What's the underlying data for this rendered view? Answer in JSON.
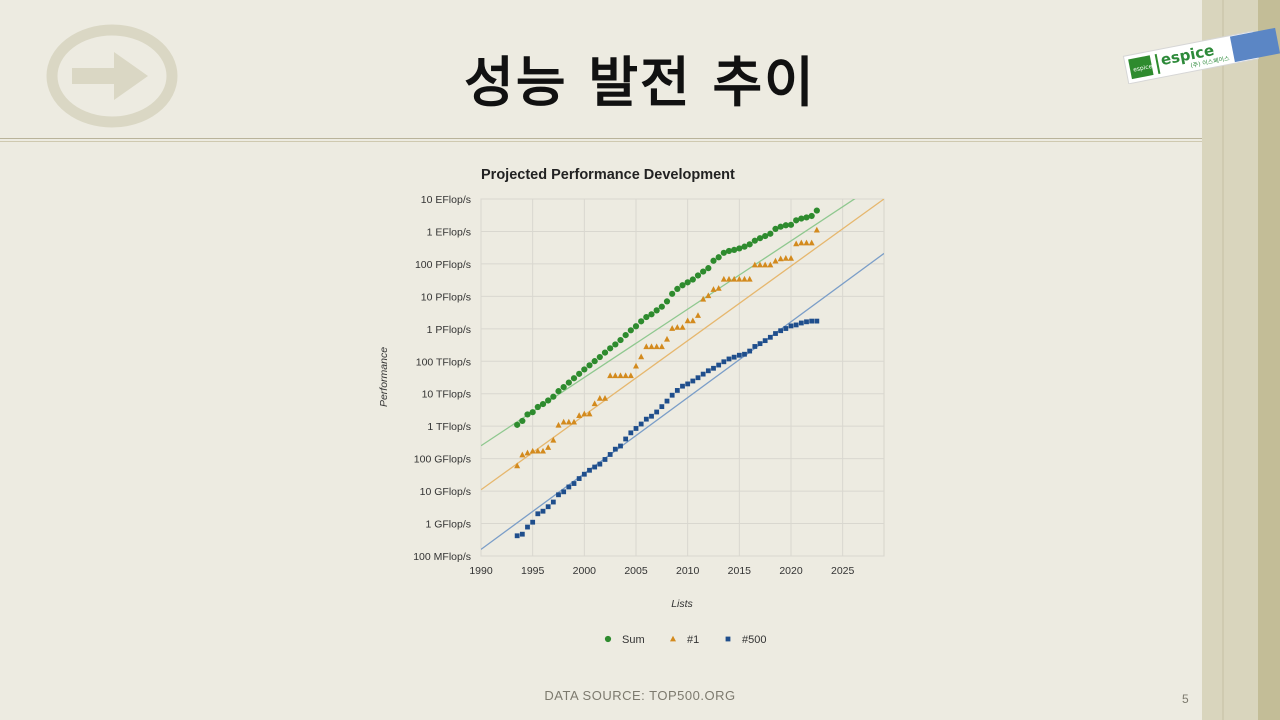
{
  "slide": {
    "title": "성능 발전 추이",
    "footer": "DATA SOURCE: TOP500.ORG",
    "page_number": "5",
    "brand": {
      "name": "espice",
      "subtitle": "(주) 이스페이스",
      "badge": "espice"
    }
  },
  "colors": {
    "sum": "#2e8b2e",
    "first": "#d38a1d",
    "last": "#1f4e8c",
    "background": "#edebe1",
    "accent_band": "#d9d5bd"
  },
  "chart_data": {
    "type": "scatter",
    "title": "Projected Performance Development",
    "xlabel": "Lists",
    "ylabel": "Performance",
    "y_scale": "log",
    "xlim": [
      1990,
      2029
    ],
    "ylim_gflops": [
      0.1,
      10000000000
    ],
    "x_ticks": [
      1990,
      1995,
      2000,
      2005,
      2010,
      2015,
      2020,
      2025
    ],
    "y_ticks": [
      {
        "value": 0.1,
        "label": "100 MFlop/s"
      },
      {
        "value": 1,
        "label": "1 GFlop/s"
      },
      {
        "value": 10,
        "label": "10 GFlop/s"
      },
      {
        "value": 100,
        "label": "100 GFlop/s"
      },
      {
        "value": 1000,
        "label": "1 TFlop/s"
      },
      {
        "value": 10000,
        "label": "10 TFlop/s"
      },
      {
        "value": 100000,
        "label": "100 TFlop/s"
      },
      {
        "value": 1000000,
        "label": "1 PFlop/s"
      },
      {
        "value": 10000000,
        "label": "10 PFlop/s"
      },
      {
        "value": 100000000,
        "label": "100 PFlop/s"
      },
      {
        "value": 1000000000,
        "label": "1 EFlop/s"
      },
      {
        "value": 10000000000,
        "label": "10 EFlop/s"
      }
    ],
    "grid": true,
    "legend_position": "bottom",
    "series": [
      {
        "name": "Sum",
        "marker": "circle",
        "color": "#2e8b2e",
        "points": [
          [
            1993.5,
            1100
          ],
          [
            1994.0,
            1450
          ],
          [
            1994.5,
            2300
          ],
          [
            1995.0,
            2700
          ],
          [
            1995.5,
            3900
          ],
          [
            1996.0,
            4800
          ],
          [
            1996.5,
            6200
          ],
          [
            1997.0,
            8100
          ],
          [
            1997.5,
            12000
          ],
          [
            1998.0,
            16000
          ],
          [
            1998.5,
            22000
          ],
          [
            1999.0,
            30000
          ],
          [
            1999.5,
            41000
          ],
          [
            2000.0,
            56000
          ],
          [
            2000.5,
            75000
          ],
          [
            2001.0,
            101000
          ],
          [
            2001.5,
            135000
          ],
          [
            2002.0,
            185000
          ],
          [
            2002.5,
            250000
          ],
          [
            2003.0,
            330000
          ],
          [
            2003.5,
            450000
          ],
          [
            2004.0,
            640000
          ],
          [
            2004.5,
            900000
          ],
          [
            2005.0,
            1200000
          ],
          [
            2005.5,
            1700000
          ],
          [
            2006.0,
            2300000
          ],
          [
            2006.5,
            2800000
          ],
          [
            2007.0,
            3700000
          ],
          [
            2007.5,
            4800000
          ],
          [
            2008.0,
            7000000
          ],
          [
            2008.5,
            12000000
          ],
          [
            2009.0,
            17000000
          ],
          [
            2009.5,
            22000000
          ],
          [
            2010.0,
            27000000
          ],
          [
            2010.5,
            33000000
          ],
          [
            2011.0,
            44000000
          ],
          [
            2011.5,
            58000000
          ],
          [
            2012.0,
            74000000
          ],
          [
            2012.5,
            125000000
          ],
          [
            2013.0,
            160000000
          ],
          [
            2013.5,
            220000000
          ],
          [
            2014.0,
            250000000
          ],
          [
            2014.5,
            270000000
          ],
          [
            2015.0,
            300000000
          ],
          [
            2015.5,
            340000000
          ],
          [
            2016.0,
            400000000
          ],
          [
            2016.5,
            520000000
          ],
          [
            2017.0,
            620000000
          ],
          [
            2017.5,
            720000000
          ],
          [
            2018.0,
            850000000
          ],
          [
            2018.5,
            1200000000
          ],
          [
            2019.0,
            1400000000
          ],
          [
            2019.5,
            1550000000
          ],
          [
            2020.0,
            1600000000
          ],
          [
            2020.5,
            2200000000
          ],
          [
            2021.0,
            2500000000
          ],
          [
            2021.5,
            2700000000
          ],
          [
            2022.0,
            3000000000
          ],
          [
            2022.5,
            4400000000
          ]
        ]
      },
      {
        "name": "#1",
        "marker": "triangle",
        "color": "#d38a1d",
        "points": [
          [
            1993.5,
            60
          ],
          [
            1994.0,
            130
          ],
          [
            1994.5,
            150
          ],
          [
            1995.0,
            170
          ],
          [
            1995.5,
            170
          ],
          [
            1996.0,
            170
          ],
          [
            1996.5,
            220
          ],
          [
            1997.0,
            370
          ],
          [
            1997.5,
            1070
          ],
          [
            1998.0,
            1340
          ],
          [
            1998.5,
            1340
          ],
          [
            1999.0,
            1340
          ],
          [
            1999.5,
            2120
          ],
          [
            2000.0,
            2380
          ],
          [
            2000.5,
            2380
          ],
          [
            2001.0,
            4940
          ],
          [
            2001.5,
            7230
          ],
          [
            2002.0,
            7230
          ],
          [
            2002.5,
            35860
          ],
          [
            2003.0,
            35860
          ],
          [
            2003.5,
            35860
          ],
          [
            2004.0,
            35860
          ],
          [
            2004.5,
            35860
          ],
          [
            2005.0,
            70720
          ],
          [
            2005.5,
            136800
          ],
          [
            2006.0,
            280600
          ],
          [
            2006.5,
            280600
          ],
          [
            2007.0,
            280600
          ],
          [
            2007.5,
            280600
          ],
          [
            2008.0,
            478200
          ],
          [
            2008.5,
            1026000
          ],
          [
            2009.0,
            1105000
          ],
          [
            2009.5,
            1105000
          ],
          [
            2010.0,
            1759000
          ],
          [
            2010.5,
            1759000
          ],
          [
            2011.0,
            2566000
          ],
          [
            2011.5,
            8162000
          ],
          [
            2012.0,
            10510000
          ],
          [
            2012.5,
            16320000
          ],
          [
            2013.0,
            17590000
          ],
          [
            2013.5,
            33860000
          ],
          [
            2014.0,
            33860000
          ],
          [
            2014.5,
            33860000
          ],
          [
            2015.0,
            33860000
          ],
          [
            2015.5,
            33860000
          ],
          [
            2016.0,
            33860000
          ],
          [
            2016.5,
            93010000
          ],
          [
            2017.0,
            93010000
          ],
          [
            2017.5,
            93010000
          ],
          [
            2018.0,
            93010000
          ],
          [
            2018.5,
            122300000
          ],
          [
            2019.0,
            143500000
          ],
          [
            2019.5,
            148600000
          ],
          [
            2020.0,
            148600000
          ],
          [
            2020.5,
            415500000
          ],
          [
            2021.0,
            442000000
          ],
          [
            2021.5,
            442000000
          ],
          [
            2022.0,
            442000000
          ],
          [
            2022.5,
            1102000000
          ]
        ]
      },
      {
        "name": "#500",
        "marker": "square",
        "color": "#1f4e8c",
        "points": [
          [
            1993.5,
            0.42
          ],
          [
            1994.0,
            0.47
          ],
          [
            1994.5,
            0.78
          ],
          [
            1995.0,
            1.1
          ],
          [
            1995.5,
            2.0
          ],
          [
            1996.0,
            2.4
          ],
          [
            1996.5,
            3.3
          ],
          [
            1997.0,
            4.6
          ],
          [
            1997.5,
            7.7
          ],
          [
            1998.0,
            9.5
          ],
          [
            1998.5,
            13.4
          ],
          [
            1999.0,
            17.1
          ],
          [
            1999.5,
            24.3
          ],
          [
            2000.0,
            33.1
          ],
          [
            2000.5,
            43.8
          ],
          [
            2001.0,
            55.1
          ],
          [
            2001.5,
            67.8
          ],
          [
            2002.0,
            94.3
          ],
          [
            2002.5,
            134.3
          ],
          [
            2003.0,
            195.6
          ],
          [
            2003.5,
            245.1
          ],
          [
            2004.0,
            403.4
          ],
          [
            2004.5,
            624.0
          ],
          [
            2005.0,
            850.6
          ],
          [
            2005.5,
            1166
          ],
          [
            2006.0,
            1646
          ],
          [
            2006.5,
            2026
          ],
          [
            2007.0,
            2736
          ],
          [
            2007.5,
            4005
          ],
          [
            2008.0,
            5929
          ],
          [
            2008.5,
            9000
          ],
          [
            2009.0,
            12640
          ],
          [
            2009.5,
            17090
          ],
          [
            2010.0,
            20050
          ],
          [
            2010.5,
            24670
          ],
          [
            2011.0,
            31120
          ],
          [
            2011.5,
            40190
          ],
          [
            2012.0,
            50940
          ],
          [
            2012.5,
            60820
          ],
          [
            2013.0,
            76500
          ],
          [
            2013.5,
            96620
          ],
          [
            2014.0,
            117830
          ],
          [
            2014.5,
            133700
          ],
          [
            2015.0,
            153400
          ],
          [
            2015.5,
            164700
          ],
          [
            2016.0,
            206300
          ],
          [
            2016.5,
            285900
          ],
          [
            2017.0,
            349300
          ],
          [
            2017.5,
            432200
          ],
          [
            2018.0,
            548300
          ],
          [
            2018.5,
            715600
          ],
          [
            2019.0,
            874800
          ],
          [
            2019.5,
            1022000
          ],
          [
            2020.0,
            1228000
          ],
          [
            2020.5,
            1317000
          ],
          [
            2021.0,
            1511000
          ],
          [
            2021.5,
            1646000
          ],
          [
            2022.0,
            1729000
          ],
          [
            2022.5,
            1730000
          ]
        ]
      }
    ],
    "trend_lines": [
      {
        "series": "Sum",
        "color": "#8fc88f",
        "from": [
          1990,
          250
        ],
        "to": [
          2029,
          40000000000
        ]
      },
      {
        "series": "#1",
        "color": "#e6b76e",
        "from": [
          1990,
          11
        ],
        "to": [
          2029,
          10000000000
        ]
      },
      {
        "series": "#500",
        "color": "#7b9ec8",
        "from": [
          1990,
          0.16
        ],
        "to": [
          2029,
          210000000
        ]
      }
    ]
  }
}
